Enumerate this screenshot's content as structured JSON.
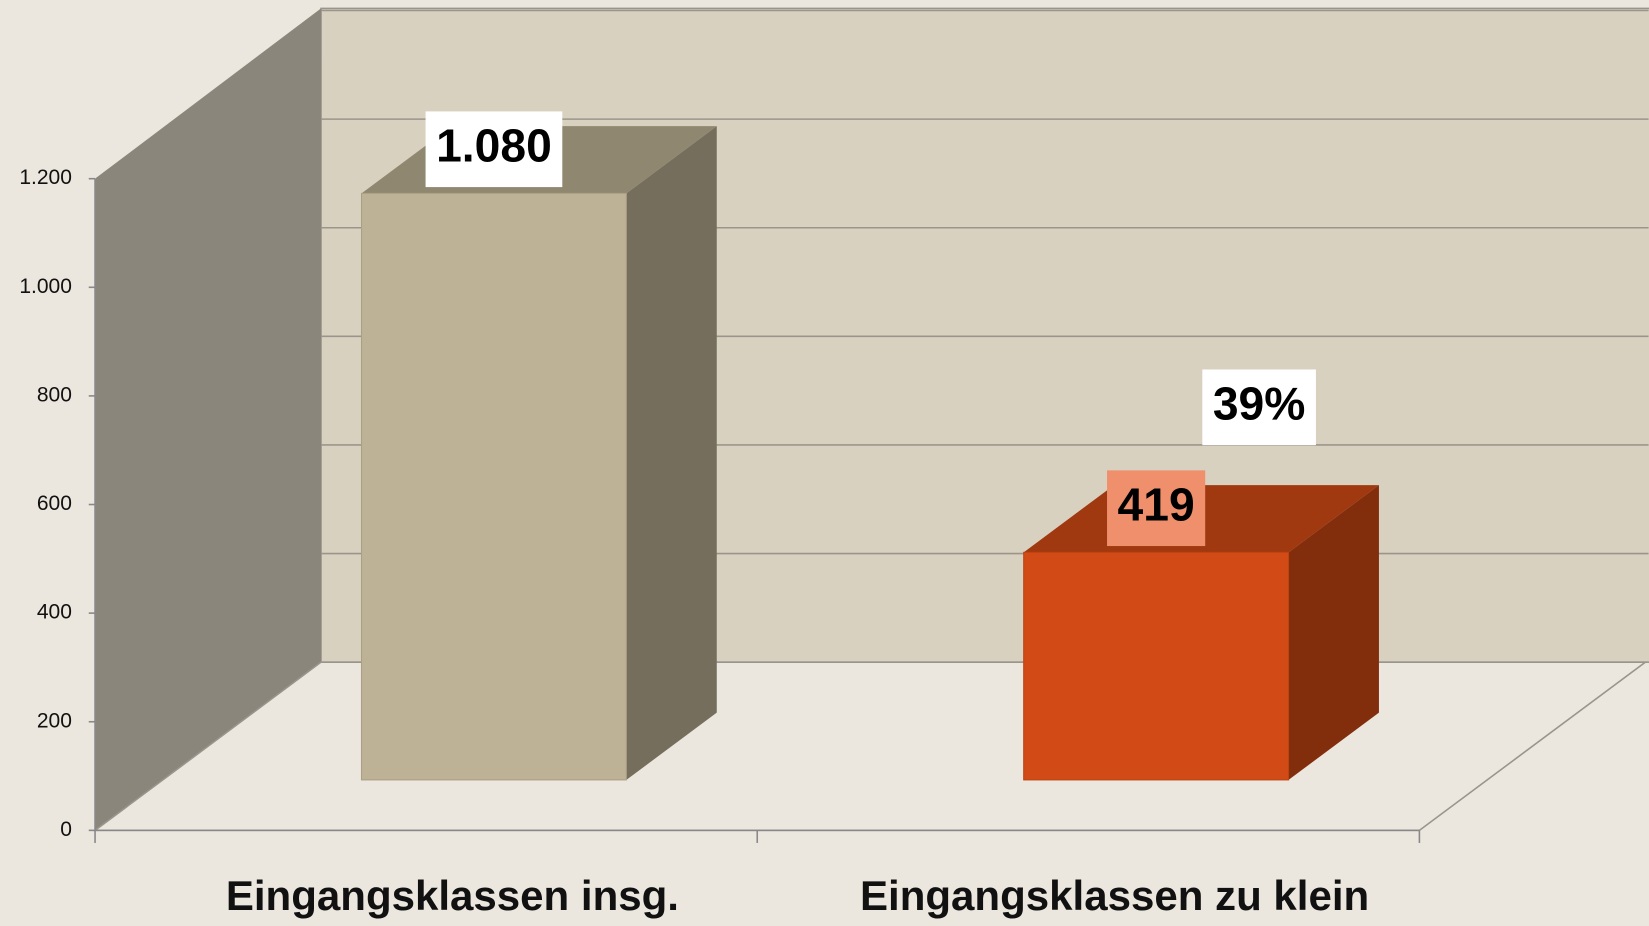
{
  "chart_data": {
    "type": "bar",
    "categories": [
      "Eingangsklassen insg.",
      "Eingangsklassen zu klein"
    ],
    "values": [
      1080,
      419
    ],
    "value_labels": [
      "1.080",
      "419"
    ],
    "colors": [
      "#bdb295",
      "#d24a15"
    ],
    "annotation": "39%",
    "ylim": [
      0,
      1200
    ],
    "yticks": [
      0,
      200,
      400,
      600,
      800,
      {
        "value": 1000,
        "label": "1.000"
      },
      {
        "value": 1200,
        "label": "1.200"
      }
    ],
    "grid": true
  }
}
